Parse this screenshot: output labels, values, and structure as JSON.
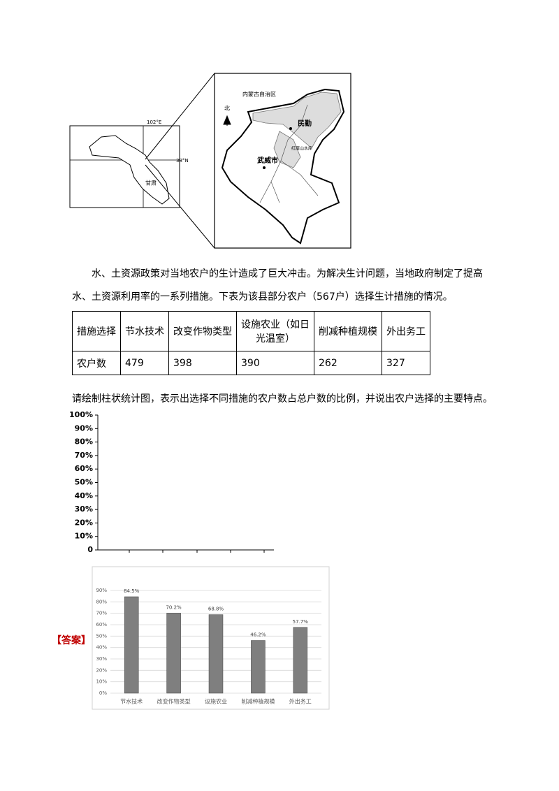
{
  "map": {
    "small": {
      "lon": "102°E",
      "lat": "38°N",
      "province": "甘肃"
    },
    "large": {
      "north": "北",
      "region": "内蒙古自治区",
      "town": "民勤",
      "city": "武威市",
      "reservoir": "红崖山水库"
    }
  },
  "paragraph": "水、土资源政策对当地农户的生计造成了巨大冲击。为解决生计问题，当地政府制定了提高水、土资源利用率的一系列措施。下表为该县部分农户（567户）选择生计措施的情况。",
  "table": {
    "rows": [
      [
        "措施选择",
        "节水技术",
        "改变作物类型",
        "设施农业（如日光温室）",
        "削减种植规模",
        "外出务工"
      ],
      [
        "农户数",
        479,
        398,
        390,
        262,
        327
      ]
    ]
  },
  "question": "请绘制柱状统计图，表示出选择不同措施的农户数占总户数的比例，并说出农户选择的主要特点。",
  "blank_axis": {
    "ylim": [
      0,
      100
    ],
    "yticks": [
      0,
      {
        "value": 10,
        "label": "10%"
      },
      {
        "value": 20,
        "label": "20%"
      },
      {
        "value": 30,
        "label": "30%"
      },
      {
        "value": 40,
        "label": "40%"
      },
      {
        "value": 50,
        "label": "50%"
      },
      {
        "value": 60,
        "label": "60%"
      },
      {
        "value": 70,
        "label": "70%"
      },
      {
        "value": 80,
        "label": "80%"
      },
      {
        "value": 90,
        "label": "90%"
      },
      {
        "value": 100,
        "label": "100%"
      }
    ]
  },
  "answer_label": "【答案】",
  "chart_data": {
    "type": "bar",
    "categories": [
      "节水技术",
      "改变作物类型",
      "设施农业",
      "削减种植规模",
      "外出务工"
    ],
    "values": [
      84.5,
      70.2,
      68.8,
      46.2,
      57.7
    ],
    "value_labels": [
      "84.5%",
      "70.2%",
      "68.8%",
      "46.2%",
      "57.7%"
    ],
    "color": "#7f7f7f",
    "ylim": [
      0,
      90
    ],
    "yticks": [
      {
        "value": 0,
        "label": "0%"
      },
      {
        "value": 10,
        "label": "10%"
      },
      {
        "value": 20,
        "label": "20%"
      },
      {
        "value": 30,
        "label": "30%"
      },
      {
        "value": 40,
        "label": "40%"
      },
      {
        "value": 50,
        "label": "50%"
      },
      {
        "value": 60,
        "label": "60%"
      },
      {
        "value": 70,
        "label": "70%"
      },
      {
        "value": 80,
        "label": "80%"
      },
      {
        "value": 90,
        "label": "90%"
      }
    ],
    "grid": true
  }
}
